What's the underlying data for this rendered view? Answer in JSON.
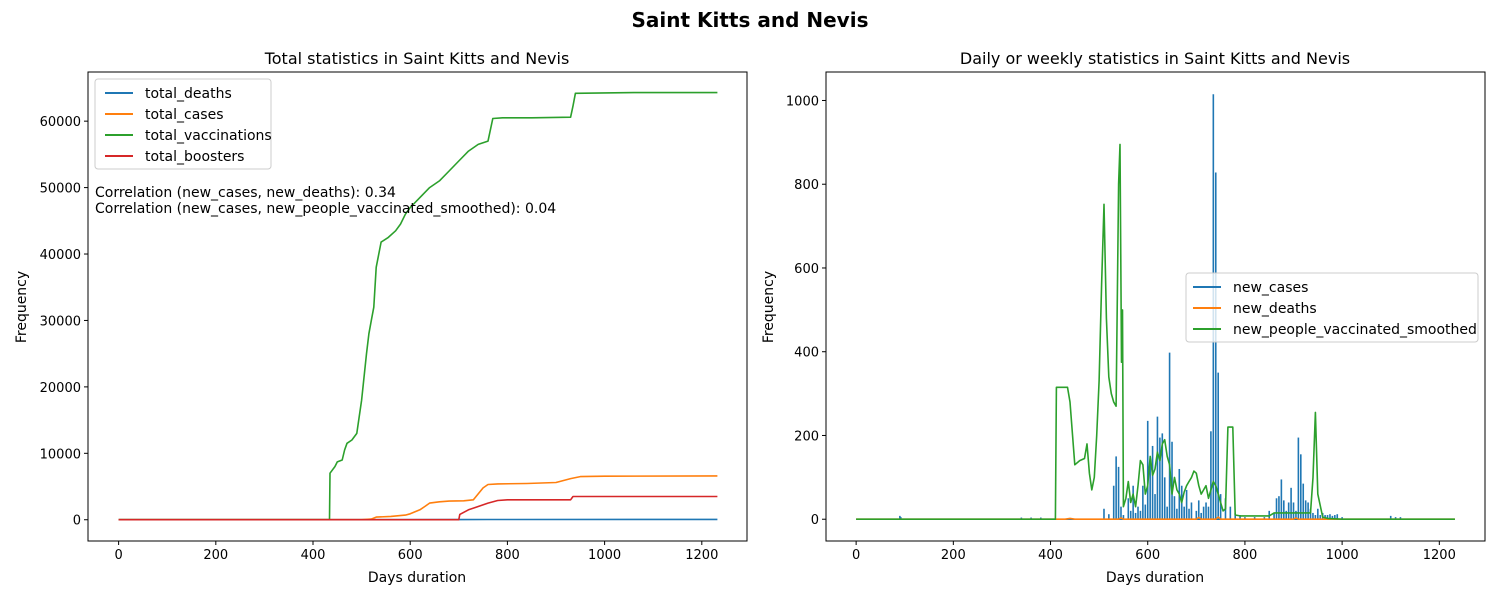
{
  "figure": {
    "title": "Saint Kitts and Nevis"
  },
  "chart_data": [
    {
      "type": "line",
      "title": "Total statistics in Saint Kitts and Nevis",
      "xlabel": "Days duration",
      "ylabel": "Frequency",
      "xlim": [
        -63,
        1293
      ],
      "ylim": [
        -3200,
        67400
      ],
      "xticks": [
        0,
        200,
        400,
        600,
        800,
        1000,
        1200
      ],
      "yticks": [
        0,
        10000,
        20000,
        30000,
        40000,
        50000,
        60000
      ],
      "grid": false,
      "legend_position": "top-left",
      "annotations": [
        "Correlation (new_cases, new_deaths): 0.34",
        "Correlation (new_cases, new_people_vaccinated_smoothed): 0.04"
      ],
      "series": [
        {
          "name": "total_deaths",
          "color": "#1f77b4",
          "points": [
            [
              0,
              0
            ],
            [
              540,
              0
            ],
            [
              700,
              20
            ],
            [
              760,
              40
            ],
            [
              1232,
              45
            ]
          ]
        },
        {
          "name": "total_cases",
          "color": "#ff7f0e",
          "points": [
            [
              0,
              0
            ],
            [
              500,
              10
            ],
            [
              520,
              100
            ],
            [
              530,
              400
            ],
            [
              560,
              500
            ],
            [
              590,
              700
            ],
            [
              600,
              900
            ],
            [
              620,
              1500
            ],
            [
              630,
              2000
            ],
            [
              640,
              2500
            ],
            [
              660,
              2700
            ],
            [
              680,
              2800
            ],
            [
              710,
              2850
            ],
            [
              730,
              3000
            ],
            [
              750,
              4800
            ],
            [
              760,
              5300
            ],
            [
              780,
              5400
            ],
            [
              840,
              5450
            ],
            [
              900,
              5600
            ],
            [
              930,
              6200
            ],
            [
              950,
              6500
            ],
            [
              1000,
              6550
            ],
            [
              1232,
              6600
            ]
          ]
        },
        {
          "name": "total_vaccinations",
          "color": "#2ca02c",
          "points": [
            [
              0,
              0
            ],
            [
              434,
              0
            ],
            [
              435,
              7000
            ],
            [
              445,
              8000
            ],
            [
              450,
              8700
            ],
            [
              460,
              9000
            ],
            [
              465,
              10500
            ],
            [
              470,
              11500
            ],
            [
              480,
              12000
            ],
            [
              490,
              13000
            ],
            [
              495,
              15500
            ],
            [
              500,
              18000
            ],
            [
              510,
              25000
            ],
            [
              515,
              28000
            ],
            [
              520,
              30000
            ],
            [
              525,
              32000
            ],
            [
              530,
              38000
            ],
            [
              540,
              41800
            ],
            [
              555,
              42500
            ],
            [
              570,
              43500
            ],
            [
              580,
              44500
            ],
            [
              590,
              46000
            ],
            [
              600,
              47000
            ],
            [
              620,
              48500
            ],
            [
              640,
              50000
            ],
            [
              660,
              51000
            ],
            [
              680,
              52500
            ],
            [
              700,
              54000
            ],
            [
              720,
              55500
            ],
            [
              740,
              56500
            ],
            [
              760,
              57000
            ],
            [
              770,
              60400
            ],
            [
              790,
              60500
            ],
            [
              850,
              60500
            ],
            [
              930,
              60600
            ],
            [
              935,
              62300
            ],
            [
              940,
              64200
            ],
            [
              1060,
              64300
            ],
            [
              1232,
              64300
            ]
          ]
        },
        {
          "name": "total_boosters",
          "color": "#d62728",
          "points": [
            [
              0,
              0
            ],
            [
              700,
              0
            ],
            [
              702,
              800
            ],
            [
              720,
              1500
            ],
            [
              740,
              2000
            ],
            [
              760,
              2500
            ],
            [
              780,
              2900
            ],
            [
              800,
              3000
            ],
            [
              930,
              3000
            ],
            [
              935,
              3500
            ],
            [
              1232,
              3500
            ]
          ]
        }
      ]
    },
    {
      "type": "line",
      "title": "Daily or weekly statistics in Saint Kitts and Nevis",
      "xlabel": "Days duration",
      "ylabel": "Frequency",
      "xlim": [
        -62,
        1294
      ],
      "ylim": [
        -52,
        1068
      ],
      "xticks": [
        0,
        200,
        400,
        600,
        800,
        1000,
        1200
      ],
      "yticks": [
        0,
        200,
        400,
        600,
        800,
        1000
      ],
      "grid": false,
      "legend_position": "center-right",
      "series": [
        {
          "name": "new_cases",
          "color": "#1f77b4",
          "style": "spikes",
          "spikes": [
            [
              90,
              8
            ],
            [
              92,
              5
            ],
            [
              340,
              4
            ],
            [
              360,
              4
            ],
            [
              380,
              4
            ],
            [
              510,
              25
            ],
            [
              520,
              12
            ],
            [
              530,
              80
            ],
            [
              535,
              150
            ],
            [
              540,
              125
            ],
            [
              545,
              30
            ],
            [
              550,
              10
            ],
            [
              560,
              50
            ],
            [
              565,
              20
            ],
            [
              570,
              80
            ],
            [
              575,
              15
            ],
            [
              580,
              30
            ],
            [
              585,
              20
            ],
            [
              590,
              80
            ],
            [
              595,
              35
            ],
            [
              600,
              235
            ],
            [
              605,
              140
            ],
            [
              610,
              175
            ],
            [
              615,
              60
            ],
            [
              620,
              245
            ],
            [
              625,
              195
            ],
            [
              630,
              205
            ],
            [
              635,
              100
            ],
            [
              640,
              30
            ],
            [
              645,
              398
            ],
            [
              650,
              185
            ],
            [
              655,
              55
            ],
            [
              660,
              25
            ],
            [
              665,
              120
            ],
            [
              670,
              80
            ],
            [
              675,
              30
            ],
            [
              680,
              70
            ],
            [
              685,
              25
            ],
            [
              690,
              40
            ],
            [
              700,
              20
            ],
            [
              705,
              45
            ],
            [
              710,
              15
            ],
            [
              715,
              30
            ],
            [
              720,
              40
            ],
            [
              725,
              30
            ],
            [
              730,
              210
            ],
            [
              735,
              1015
            ],
            [
              740,
              828
            ],
            [
              745,
              350
            ],
            [
              750,
              60
            ],
            [
              760,
              50
            ],
            [
              770,
              30
            ],
            [
              780,
              15
            ],
            [
              790,
              10
            ],
            [
              800,
              5
            ],
            [
              820,
              5
            ],
            [
              840,
              5
            ],
            [
              850,
              20
            ],
            [
              860,
              15
            ],
            [
              865,
              50
            ],
            [
              870,
              55
            ],
            [
              875,
              95
            ],
            [
              880,
              45
            ],
            [
              885,
              20
            ],
            [
              890,
              40
            ],
            [
              895,
              75
            ],
            [
              900,
              40
            ],
            [
              905,
              20
            ],
            [
              910,
              195
            ],
            [
              915,
              155
            ],
            [
              920,
              85
            ],
            [
              925,
              45
            ],
            [
              930,
              40
            ],
            [
              935,
              25
            ],
            [
              940,
              15
            ],
            [
              945,
              10
            ],
            [
              950,
              25
            ],
            [
              955,
              10
            ],
            [
              960,
              15
            ],
            [
              965,
              10
            ],
            [
              970,
              10
            ],
            [
              975,
              12
            ],
            [
              980,
              8
            ],
            [
              985,
              10
            ],
            [
              990,
              12
            ],
            [
              1000,
              5
            ],
            [
              1100,
              8
            ],
            [
              1110,
              5
            ],
            [
              1120,
              5
            ]
          ]
        },
        {
          "name": "new_deaths",
          "color": "#ff7f0e",
          "points": [
            [
              0,
              0
            ],
            [
              430,
              0
            ],
            [
              440,
              2
            ],
            [
              450,
              0
            ],
            [
              540,
              0
            ],
            [
              545,
              3
            ],
            [
              550,
              0
            ],
            [
              700,
              0
            ],
            [
              705,
              4
            ],
            [
              710,
              0
            ],
            [
              740,
              0
            ],
            [
              745,
              5
            ],
            [
              750,
              0
            ],
            [
              900,
              0
            ],
            [
              905,
              3
            ],
            [
              910,
              0
            ],
            [
              1232,
              0
            ]
          ]
        },
        {
          "name": "new_people_vaccinated_smoothed",
          "color": "#2ca02c",
          "points": [
            [
              0,
              0
            ],
            [
              410,
              0
            ],
            [
              412,
              315
            ],
            [
              435,
              315
            ],
            [
              440,
              280
            ],
            [
              450,
              130
            ],
            [
              460,
              140
            ],
            [
              470,
              145
            ],
            [
              475,
              180
            ],
            [
              480,
              110
            ],
            [
              485,
              70
            ],
            [
              490,
              100
            ],
            [
              495,
              200
            ],
            [
              500,
              330
            ],
            [
              505,
              560
            ],
            [
              510,
              752
            ],
            [
              515,
              480
            ],
            [
              520,
              340
            ],
            [
              525,
              300
            ],
            [
              530,
              280
            ],
            [
              535,
              270
            ],
            [
              540,
              800
            ],
            [
              543,
              895
            ],
            [
              546,
              375
            ],
            [
              548,
              500
            ],
            [
              550,
              30
            ],
            [
              555,
              50
            ],
            [
              560,
              90
            ],
            [
              565,
              40
            ],
            [
              570,
              60
            ],
            [
              575,
              30
            ],
            [
              580,
              80
            ],
            [
              585,
              140
            ],
            [
              590,
              130
            ],
            [
              595,
              60
            ],
            [
              600,
              80
            ],
            [
              605,
              150
            ],
            [
              610,
              105
            ],
            [
              615,
              120
            ],
            [
              620,
              160
            ],
            [
              625,
              140
            ],
            [
              630,
              180
            ],
            [
              635,
              190
            ],
            [
              640,
              150
            ],
            [
              645,
              130
            ],
            [
              650,
              60
            ],
            [
              655,
              100
            ],
            [
              660,
              70
            ],
            [
              665,
              60
            ],
            [
              670,
              40
            ],
            [
              675,
              65
            ],
            [
              680,
              80
            ],
            [
              685,
              90
            ],
            [
              690,
              100
            ],
            [
              695,
              115
            ],
            [
              700,
              110
            ],
            [
              705,
              80
            ],
            [
              710,
              60
            ],
            [
              715,
              70
            ],
            [
              720,
              80
            ],
            [
              725,
              50
            ],
            [
              730,
              70
            ],
            [
              735,
              90
            ],
            [
              740,
              80
            ],
            [
              745,
              60
            ],
            [
              750,
              40
            ],
            [
              755,
              20
            ],
            [
              760,
              25
            ],
            [
              765,
              220
            ],
            [
              775,
              220
            ],
            [
              780,
              10
            ],
            [
              790,
              8
            ],
            [
              850,
              8
            ],
            [
              860,
              15
            ],
            [
              935,
              15
            ],
            [
              940,
              100
            ],
            [
              945,
              255
            ],
            [
              950,
              60
            ],
            [
              960,
              5
            ],
            [
              970,
              2
            ],
            [
              1000,
              0
            ],
            [
              1232,
              0
            ]
          ]
        }
      ]
    }
  ]
}
